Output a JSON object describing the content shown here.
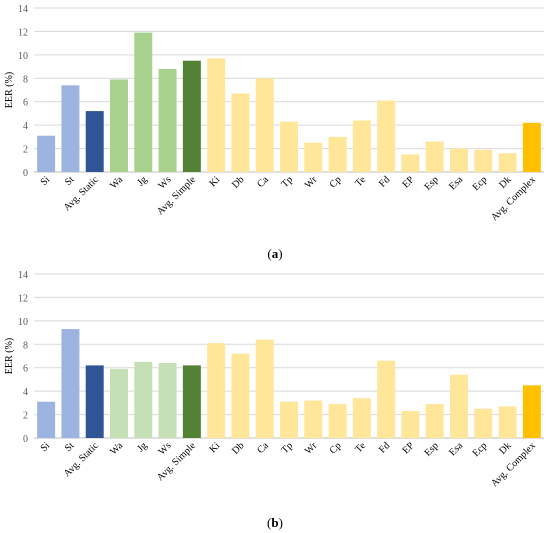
{
  "colors": {
    "static_light": "#9db3e0",
    "static_avg": "#2f5597",
    "simple_light": "#a9d18e",
    "simple_light_b": "#c5e0b4",
    "simple_avg": "#548235",
    "complex_light": "#ffe699",
    "complex_avg": "#ffc000",
    "grid": "#d9d9d9",
    "axis_text": "#595959"
  },
  "chart_data": [
    {
      "type": "bar",
      "caption": "a",
      "ylabel": "EER (%)",
      "ylim": [
        0,
        14
      ],
      "yticks": [
        0,
        2,
        4,
        6,
        8,
        10,
        12,
        14
      ],
      "grid": true,
      "categories": [
        "Si",
        "St",
        "Avg. Static",
        "Wa",
        "Jg",
        "Ws",
        "Avg. Simple",
        "Ki",
        "Db",
        "Ca",
        "Tp",
        "Wr",
        "Cp",
        "Te",
        "Fd",
        "EP",
        "Esp",
        "Esa",
        "Ecp",
        "Dk",
        "Avg. Complex"
      ],
      "values": [
        3.1,
        7.4,
        5.2,
        7.9,
        11.9,
        8.8,
        9.5,
        9.7,
        6.7,
        8.0,
        4.3,
        2.5,
        3.0,
        4.4,
        6.1,
        1.5,
        2.6,
        2.0,
        1.9,
        1.6,
        4.2
      ],
      "color_keys": [
        "static_light",
        "static_light",
        "static_avg",
        "simple_light",
        "simple_light",
        "simple_light",
        "simple_avg",
        "complex_light",
        "complex_light",
        "complex_light",
        "complex_light",
        "complex_light",
        "complex_light",
        "complex_light",
        "complex_light",
        "complex_light",
        "complex_light",
        "complex_light",
        "complex_light",
        "complex_light",
        "complex_avg"
      ]
    },
    {
      "type": "bar",
      "caption": "b",
      "ylabel": "EER (%)",
      "ylim": [
        0,
        14
      ],
      "yticks": [
        0,
        2,
        4,
        6,
        8,
        10,
        12,
        14
      ],
      "grid": true,
      "categories": [
        "Si",
        "St",
        "Avg. Static",
        "Wa",
        "Jg",
        "Ws",
        "Avg. Simple",
        "Ki",
        "Db",
        "Ca",
        "Tp",
        "Wr",
        "Cp",
        "Te",
        "Fd",
        "EP",
        "Esp",
        "Esa",
        "Ecp",
        "Dk",
        "Avg. Complex"
      ],
      "values": [
        3.1,
        9.3,
        6.2,
        5.9,
        6.5,
        6.4,
        6.2,
        8.1,
        7.2,
        8.4,
        3.1,
        3.2,
        2.9,
        3.4,
        6.6,
        2.3,
        2.9,
        5.4,
        2.5,
        2.7,
        4.5
      ],
      "color_keys": [
        "static_light",
        "static_light",
        "static_avg",
        "simple_light_b",
        "simple_light_b",
        "simple_light_b",
        "simple_avg",
        "complex_light",
        "complex_light",
        "complex_light",
        "complex_light",
        "complex_light",
        "complex_light",
        "complex_light",
        "complex_light",
        "complex_light",
        "complex_light",
        "complex_light",
        "complex_light",
        "complex_light",
        "complex_avg"
      ]
    }
  ]
}
